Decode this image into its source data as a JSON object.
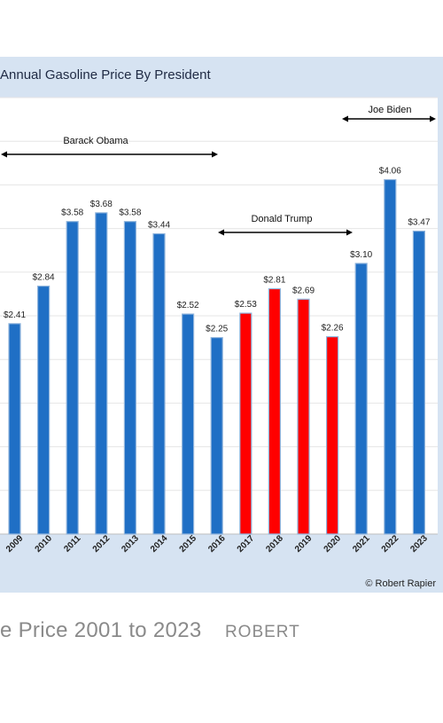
{
  "chart_data": {
    "type": "bar",
    "title": "Annual Gasoline Price By President",
    "categories": [
      "2009",
      "2010",
      "2011",
      "2012",
      "2013",
      "2014",
      "2015",
      "2016",
      "2017",
      "2018",
      "2019",
      "2020",
      "2021",
      "2022",
      "2023"
    ],
    "values": [
      2.41,
      2.84,
      3.58,
      3.68,
      3.58,
      3.44,
      2.52,
      2.25,
      2.53,
      2.81,
      2.69,
      2.26,
      3.1,
      4.06,
      3.47
    ],
    "value_labels": [
      "$2.41",
      "$2.84",
      "$3.58",
      "$3.68",
      "$3.58",
      "$3.44",
      "$2.52",
      "$2.25",
      "$2.53",
      "$2.81",
      "$2.69",
      "$2.26",
      "$3.10",
      "$4.06",
      "$3.47"
    ],
    "ylim": [
      0,
      5
    ],
    "grid": true,
    "colors": {
      "democrat": "#1f6fc5",
      "republican": "#ff0000",
      "bar_edge": "#8fb4dc",
      "background": "#d6e3f2",
      "plot_bg": "#ffffff",
      "gridline": "#e6e6e6"
    },
    "bar_colors": [
      "#1f6fc5",
      "#1f6fc5",
      "#1f6fc5",
      "#1f6fc5",
      "#1f6fc5",
      "#1f6fc5",
      "#1f6fc5",
      "#1f6fc5",
      "#ff0000",
      "#ff0000",
      "#ff0000",
      "#ff0000",
      "#1f6fc5",
      "#1f6fc5",
      "#1f6fc5"
    ],
    "annotations": [
      {
        "text": "Barack Obama",
        "from": "2009",
        "to": "2016"
      },
      {
        "text": "Donald Trump",
        "from": "2017",
        "to": "2020"
      },
      {
        "text": "Joe Biden",
        "from": "2021",
        "to": "2023"
      }
    ]
  },
  "watermark": "© Robert Rapier",
  "caption": {
    "text": "e Price 2001 to 2023",
    "credit": "ROBERT"
  }
}
